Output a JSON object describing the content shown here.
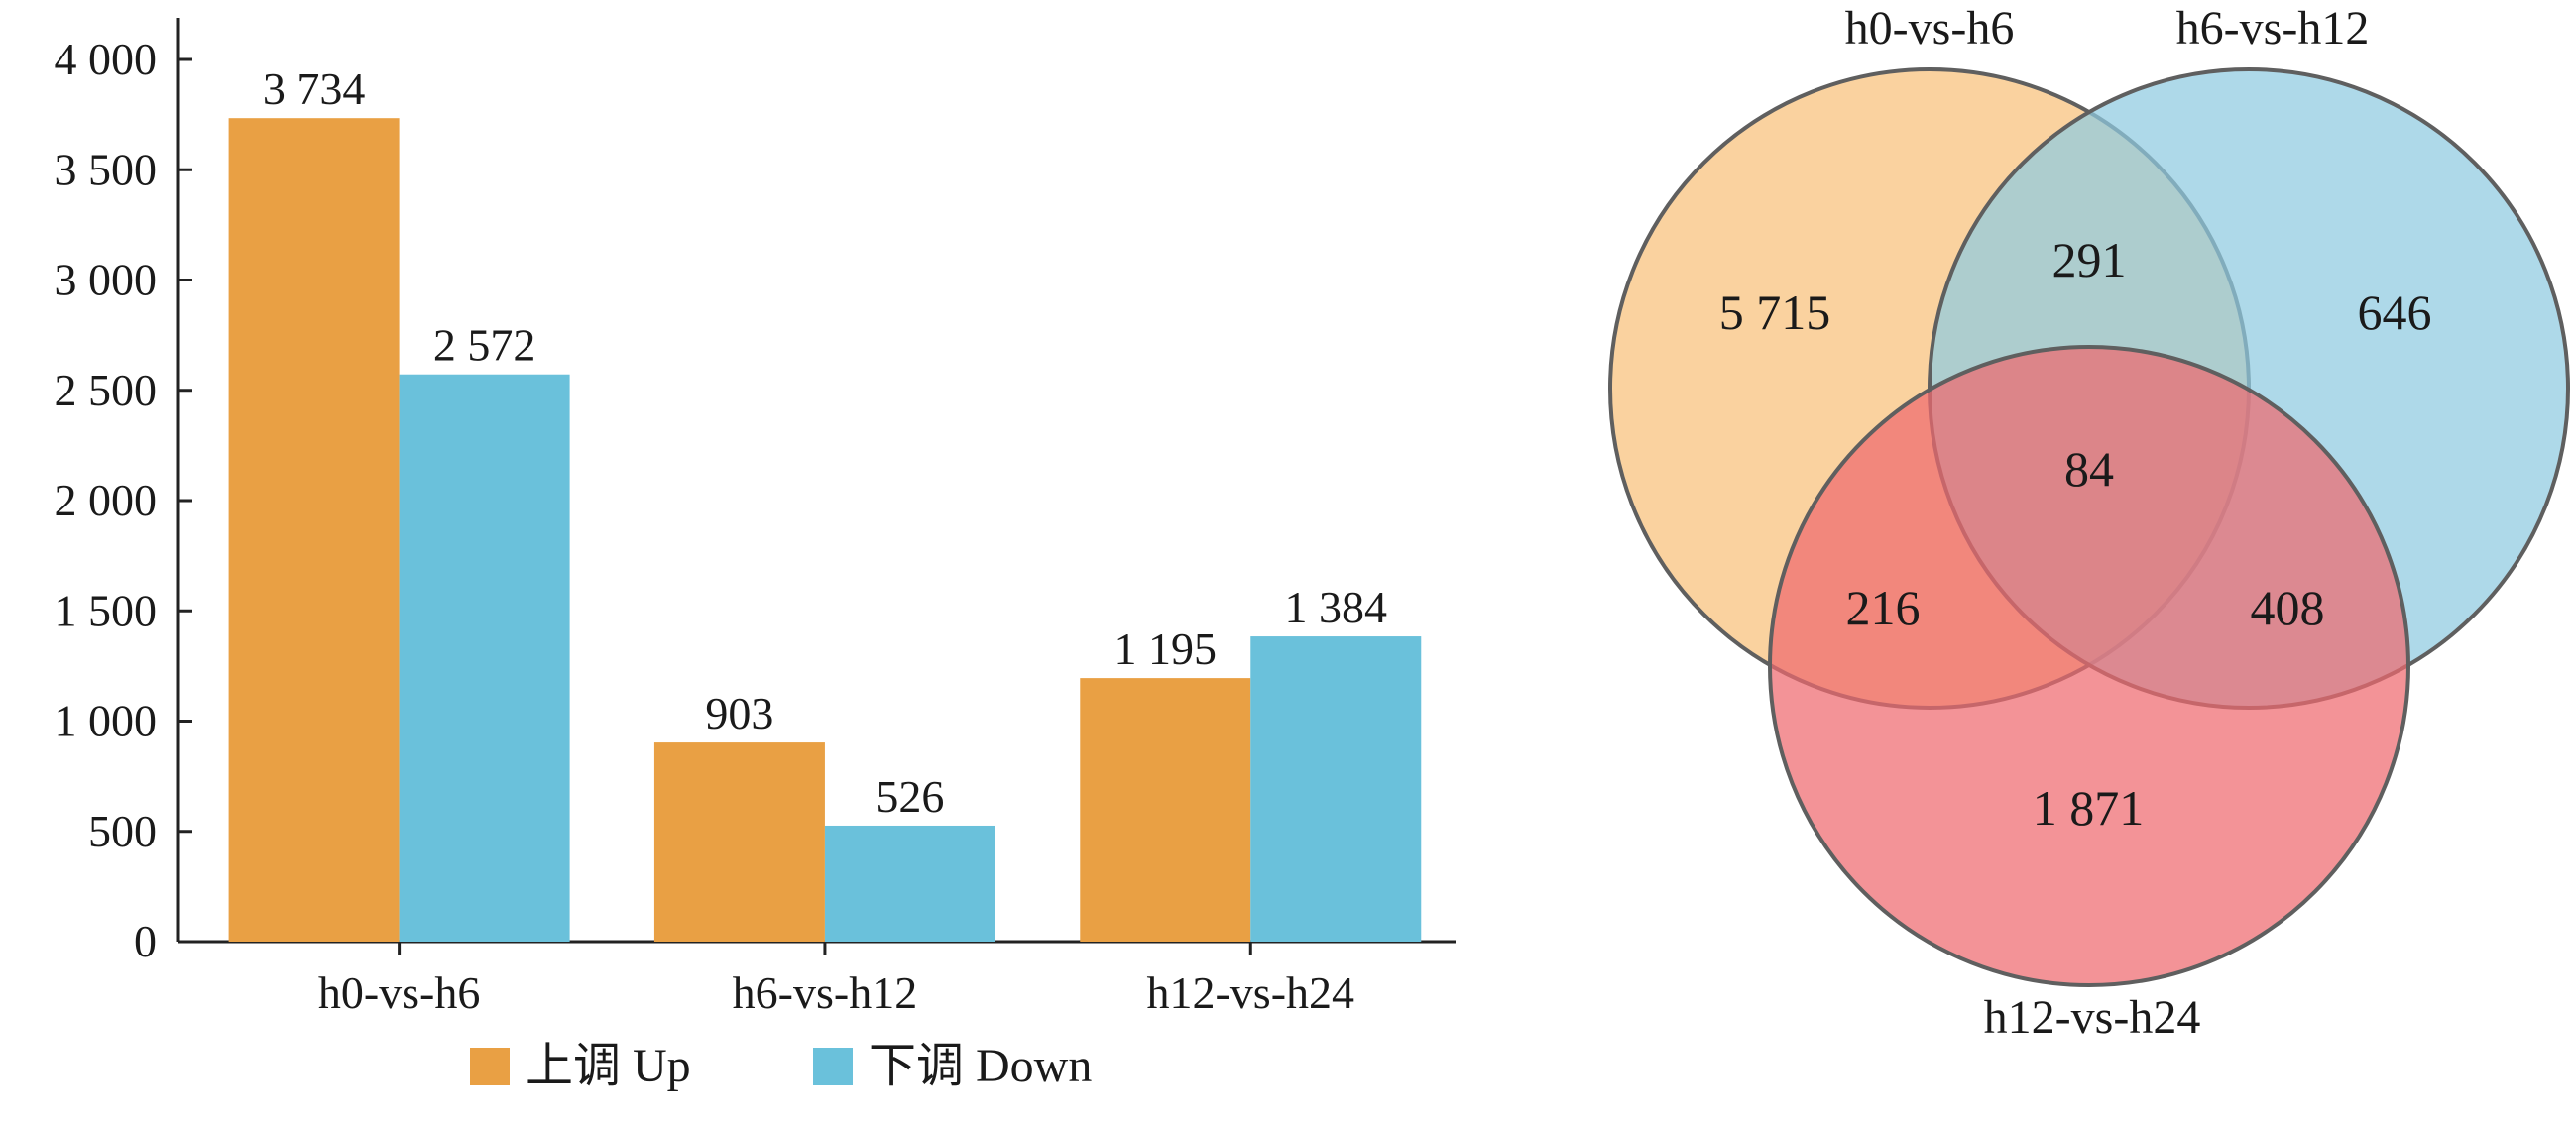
{
  "chart_data": [
    {
      "type": "bar",
      "categories": [
        "h0-vs-h6",
        "h6-vs-h12",
        "h12-vs-h24"
      ],
      "series": [
        {
          "name": "上调  Up",
          "color": "#E9A044",
          "values": [
            3734,
            903,
            1195
          ],
          "labels": [
            "3 734",
            "903",
            "1 195"
          ]
        },
        {
          "name": "下调  Down",
          "color": "#6AC1DB",
          "values": [
            2572,
            526,
            1384
          ],
          "labels": [
            "2 572",
            "526",
            "1 384"
          ]
        }
      ],
      "ylim": [
        0,
        4000
      ],
      "yticks": [
        0,
        500,
        1000,
        1500,
        2000,
        2500,
        3000,
        3500,
        4000
      ],
      "ytick_labels": [
        "0",
        "500",
        "1 000",
        "1 500",
        "2 000",
        "2 500",
        "3 000",
        "3 500",
        "4 000"
      ],
      "legend_position": "bottom"
    },
    {
      "type": "venn",
      "sets": [
        {
          "name": "h0-vs-h6",
          "color": "#F8C07A"
        },
        {
          "name": "h6-vs-h12",
          "color": "#8FCBE0"
        },
        {
          "name": "h12-vs-h24",
          "color": "#EE6A6F"
        }
      ],
      "regions": [
        {
          "sets": [
            "h0-vs-h6"
          ],
          "label": "5 715",
          "value": 5715
        },
        {
          "sets": [
            "h6-vs-h12"
          ],
          "label": "646",
          "value": 646
        },
        {
          "sets": [
            "h12-vs-h24"
          ],
          "label": "1 871",
          "value": 1871
        },
        {
          "sets": [
            "h0-vs-h6",
            "h6-vs-h12"
          ],
          "label": "291",
          "value": 291
        },
        {
          "sets": [
            "h0-vs-h6",
            "h12-vs-h24"
          ],
          "label": "216",
          "value": 216
        },
        {
          "sets": [
            "h6-vs-h12",
            "h12-vs-h24"
          ],
          "label": "408",
          "value": 408
        },
        {
          "sets": [
            "h0-vs-h6",
            "h6-vs-h12",
            "h12-vs-h24"
          ],
          "label": "84",
          "value": 84
        }
      ]
    }
  ]
}
